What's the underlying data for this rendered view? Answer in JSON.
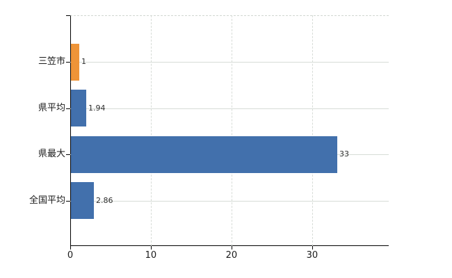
{
  "chart_data": {
    "type": "bar",
    "orientation": "horizontal",
    "categories": [
      "三笠市",
      "県平均",
      "県最大",
      "全国平均"
    ],
    "values": [
      1,
      1.94,
      33,
      2.86
    ],
    "value_labels": [
      "1",
      "1.94",
      "33",
      "2.86"
    ],
    "bar_colors": [
      "#ee9438",
      "#4270ac",
      "#4270ac",
      "#4270ac"
    ],
    "xticks": [
      {
        "value": 0,
        "label": "0"
      },
      {
        "value": 10,
        "label": "10"
      },
      {
        "value": 20,
        "label": "20"
      },
      {
        "value": 30,
        "label": "30"
      }
    ],
    "xlim": [
      0,
      39.5
    ],
    "grid": {
      "vertical_style": "dashed",
      "horizontal_style": "solid",
      "gridline_color": "#d7dcd7"
    },
    "colors": {
      "axis": "#000000",
      "category_text": "#1a1a1a",
      "value_text": "#2e2e2e",
      "tick_text": "#1a1a1a",
      "plot_top_border": "#d0d6d0",
      "background": "#ffffff",
      "accent_orange": "#ee9438",
      "accent_blue": "#4270ac"
    }
  }
}
